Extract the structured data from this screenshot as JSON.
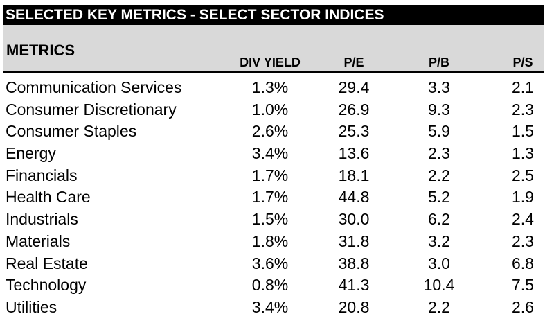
{
  "title": "SELECTED KEY METRICS - SELECT SECTOR INDICES",
  "metrics_label": "METRICS",
  "chart_data": {
    "type": "table",
    "title": "SELECTED KEY METRICS - SELECT SECTOR INDICES",
    "columns": [
      "DIV YIELD",
      "P/E",
      "P/B",
      "P/S"
    ],
    "rows": [
      {
        "sector": "Communication Services",
        "div_yield": "1.3%",
        "pe": "29.4",
        "pb": "3.3",
        "ps": "2.1"
      },
      {
        "sector": "Consumer Discretionary",
        "div_yield": "1.0%",
        "pe": "26.9",
        "pb": "9.3",
        "ps": "2.3"
      },
      {
        "sector": "Consumer Staples",
        "div_yield": "2.6%",
        "pe": "25.3",
        "pb": "5.9",
        "ps": "1.5"
      },
      {
        "sector": "Energy",
        "div_yield": "3.4%",
        "pe": "13.6",
        "pb": "2.3",
        "ps": "1.3"
      },
      {
        "sector": "Financials",
        "div_yield": "1.7%",
        "pe": "18.1",
        "pb": "2.2",
        "ps": "2.5"
      },
      {
        "sector": "Health Care",
        "div_yield": "1.7%",
        "pe": "44.8",
        "pb": "5.2",
        "ps": "1.9"
      },
      {
        "sector": "Industrials",
        "div_yield": "1.5%",
        "pe": "30.0",
        "pb": "6.2",
        "ps": "2.4"
      },
      {
        "sector": "Materials",
        "div_yield": "1.8%",
        "pe": "31.8",
        "pb": "3.2",
        "ps": "2.3"
      },
      {
        "sector": "Real Estate",
        "div_yield": "3.6%",
        "pe": "38.8",
        "pb": "3.0",
        "ps": "6.8"
      },
      {
        "sector": "Technology",
        "div_yield": "0.8%",
        "pe": "41.3",
        "pb": "10.4",
        "ps": "7.5"
      },
      {
        "sector": "Utilities",
        "div_yield": "3.4%",
        "pe": "20.8",
        "pb": "2.2",
        "ps": "2.6"
      }
    ]
  },
  "colors": {
    "title_bg": "#000000",
    "title_text": "#ffffff",
    "header_bg": "#d9d9d9",
    "text": "#000000"
  }
}
